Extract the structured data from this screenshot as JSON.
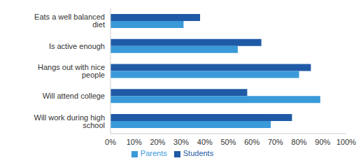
{
  "chart_data": {
    "type": "bar",
    "orientation": "horizontal",
    "categories": [
      "Eats a well balanced diet",
      "Is active enough",
      "Hangs out with nice people",
      "Will attend college",
      "Will work during high school"
    ],
    "series": [
      {
        "name": "Students",
        "color": "#1f5aa6",
        "values": [
          38,
          64,
          85,
          58,
          77
        ]
      },
      {
        "name": "Parents",
        "color": "#3a9ad9",
        "values": [
          31,
          54,
          80,
          89,
          68
        ]
      }
    ],
    "xlim": [
      0,
      100
    ],
    "xticks": [
      {
        "value": 0,
        "label": "0%"
      },
      {
        "value": 10,
        "label": "10%"
      },
      {
        "value": 20,
        "label": "20%"
      },
      {
        "value": 30,
        "label": "30%"
      },
      {
        "value": 40,
        "label": "40%"
      },
      {
        "value": 50,
        "label": "50%"
      },
      {
        "value": 60,
        "label": "60%"
      },
      {
        "value": 70,
        "label": "70%"
      },
      {
        "value": 80,
        "label": "80%"
      },
      {
        "value": 90,
        "label": "90%"
      },
      {
        "value": 100,
        "label": "100%"
      }
    ],
    "grid": false,
    "legend": "bottom"
  }
}
